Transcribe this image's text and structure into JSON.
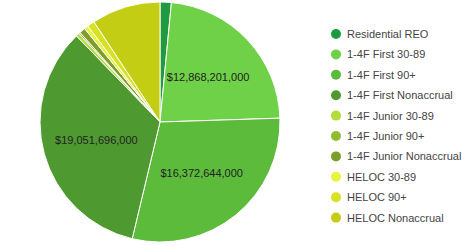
{
  "chart_data": {
    "type": "pie",
    "categories": [
      "Residential REO",
      "1-4F First 30-89",
      "1-4F First 90+",
      "1-4F First Nonaccrual",
      "1-4F Junior 30-89",
      "1-4F Junior 90+",
      "1-4F Junior Nonaccrual",
      "HELOC 30-89",
      "HELOC 90+",
      "HELOC Nonaccrual"
    ],
    "values": [
      850000000,
      12868201000,
      16372644000,
      19051696000,
      250000000,
      120000000,
      450000000,
      300000000,
      550000000,
      5200000000
    ],
    "value_labels": [
      null,
      "$12,868,201,000",
      "$16,372,644,000",
      "$19,051,696,000",
      null,
      null,
      null,
      null,
      null,
      null
    ],
    "colors": [
      "#1f9a40",
      "#6fd147",
      "#5dbb3c",
      "#4f9a30",
      "#b3dc3b",
      "#8fbd2f",
      "#7d9e2b",
      "#e9f23c",
      "#d6e222",
      "#c3cd14"
    ],
    "data_labels": true,
    "legend": "right"
  }
}
